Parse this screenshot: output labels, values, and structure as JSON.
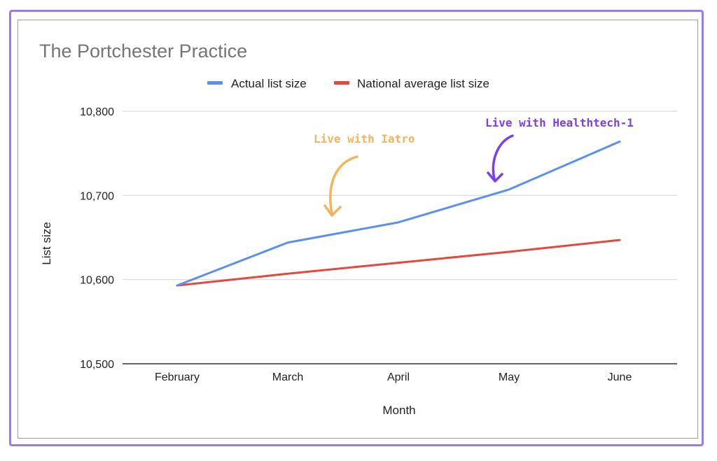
{
  "chart_data": {
    "type": "line",
    "title": "The Portchester Practice",
    "xlabel": "Month",
    "ylabel": "List size",
    "categories": [
      "February",
      "March",
      "April",
      "May",
      "June"
    ],
    "ylim": [
      10500,
      10800
    ],
    "yticks": [
      10500,
      10600,
      10700,
      10800
    ],
    "ytick_labels": [
      "10,500",
      "10,600",
      "10,700",
      "10,800"
    ],
    "grid": true,
    "legend_position": "top-center",
    "series": [
      {
        "name": "Actual list size",
        "color": "#5b8ff0",
        "values": [
          10593,
          10644,
          10668,
          10707,
          10764
        ]
      },
      {
        "name": "National average list size",
        "color": "#e5483d",
        "values": [
          10593,
          10607,
          10620,
          10633,
          10647
        ]
      }
    ],
    "annotations": [
      {
        "text": "Live with Iatro",
        "color": "#f5b35a",
        "category": "March"
      },
      {
        "text": "Live with Healthtech-1",
        "color": "#7a3ff0",
        "category": "May"
      }
    ]
  }
}
